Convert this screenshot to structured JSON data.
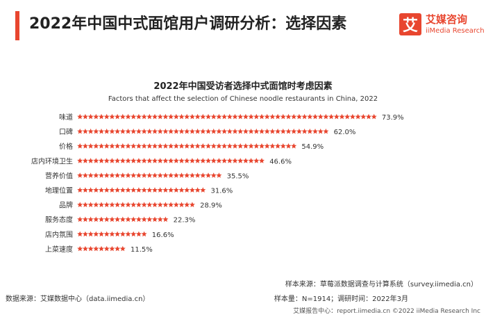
{
  "header": {
    "title": "2022年中国中式面馆用户调研分析：选择因素",
    "logo_mark": "艾",
    "logo_cn": "艾媒咨询",
    "logo_en": "iiMedia Research"
  },
  "chart_data": {
    "type": "bar",
    "orientation": "horizontal",
    "title": "2022年中国受访者选择中式面馆时考虑因素",
    "subtitle": "Factors that affect the selection of Chinese noodle restaurants in China, 2022",
    "categories": [
      "味道",
      "口碑",
      "价格",
      "店内环境卫生",
      "营养价值",
      "地理位置",
      "品牌",
      "服务态度",
      "店内氛围",
      "上菜速度"
    ],
    "values": [
      73.9,
      62.0,
      54.9,
      46.6,
      35.5,
      31.6,
      28.9,
      22.3,
      16.6,
      11.5
    ],
    "value_labels": [
      "73.9%",
      "62.0%",
      "54.9%",
      "46.6%",
      "35.5%",
      "31.6%",
      "28.9%",
      "22.3%",
      "16.6%",
      "11.5%"
    ],
    "unit": "%",
    "mark": "star",
    "xlim": [
      0,
      100
    ],
    "bar_color": "#e8462f",
    "label_color": "#333333"
  },
  "footer": {
    "data_source": "数据来源：艾媒数据中心（data.iimedia.cn）",
    "sample_source": "样本来源：草莓派数据调查与计算系统（survey.iimedia.cn）",
    "sample_size": "样本量：N=1914；调研时间：2022年3月",
    "copyright": "艾媒报告中心：report.iimedia.cn    ©2022 iiMedia Research Inc"
  }
}
